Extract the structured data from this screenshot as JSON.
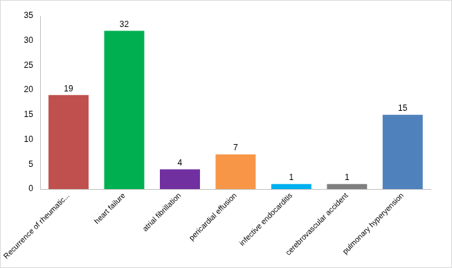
{
  "chart_data": {
    "type": "bar",
    "categories": [
      "Recurrence of rheumatic...",
      "heart failure",
      "atrial fibrillation",
      "pericardial effusion",
      "infective endocarditis",
      "cerebrovascular accident",
      "pulmonary hyperyension"
    ],
    "values": [
      19,
      32,
      4,
      7,
      1,
      1,
      15
    ],
    "colors": [
      "#c0504d",
      "#00b050",
      "#7030a0",
      "#f79646",
      "#00b0f0",
      "#7f7f7f",
      "#4f81bd"
    ],
    "ylim": [
      0,
      35
    ],
    "yticks": [
      0,
      5,
      10,
      15,
      20,
      25,
      30,
      35
    ],
    "grid": false,
    "data_labels": true
  }
}
